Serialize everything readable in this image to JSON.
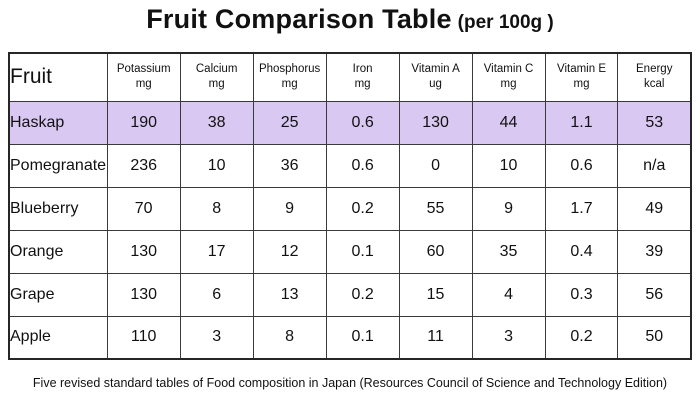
{
  "title": {
    "main": "Fruit Comparison Table",
    "suffix": "(per 100g )"
  },
  "footer": "Five revised standard tables of Food composition in Japan (Resources Council of Science and Technology Edition)",
  "colors": {
    "highlight_row": "#d9c8f2",
    "outer_border": "#262626",
    "inner_border": "#3a3a3a"
  },
  "chart_data": {
    "type": "table",
    "title": "Fruit Comparison Table (per 100g )",
    "columns": [
      {
        "label": "Fruit",
        "unit": ""
      },
      {
        "label": "Potassium",
        "unit": "mg"
      },
      {
        "label": "Calcium",
        "unit": "mg"
      },
      {
        "label": "Phosphorus",
        "unit": "mg"
      },
      {
        "label": "Iron",
        "unit": "mg"
      },
      {
        "label": "Vitamin A",
        "unit": "ug"
      },
      {
        "label": "Vitamin C",
        "unit": "mg"
      },
      {
        "label": "Vitamin E",
        "unit": "mg"
      },
      {
        "label": "Energy",
        "unit": "kcal"
      }
    ],
    "rows": [
      {
        "fruit": "Haskap",
        "values": [
          "190",
          "38",
          "25",
          "0.6",
          "130",
          "44",
          "1.1",
          "53"
        ],
        "highlighted": true
      },
      {
        "fruit": "Pomegranate",
        "values": [
          "236",
          "10",
          "36",
          "0.6",
          "0",
          "10",
          "0.6",
          "n/a"
        ],
        "highlighted": false
      },
      {
        "fruit": "Blueberry",
        "values": [
          "70",
          "8",
          "9",
          "0.2",
          "55",
          "9",
          "1.7",
          "49"
        ],
        "highlighted": false
      },
      {
        "fruit": "Orange",
        "values": [
          "130",
          "17",
          "12",
          "0.1",
          "60",
          "35",
          "0.4",
          "39"
        ],
        "highlighted": false
      },
      {
        "fruit": "Grape",
        "values": [
          "130",
          "6",
          "13",
          "0.2",
          "15",
          "4",
          "0.3",
          "56"
        ],
        "highlighted": false
      },
      {
        "fruit": "Apple",
        "values": [
          "110",
          "3",
          "8",
          "0.1",
          "11",
          "3",
          "0.2",
          "50"
        ],
        "highlighted": false
      }
    ]
  }
}
